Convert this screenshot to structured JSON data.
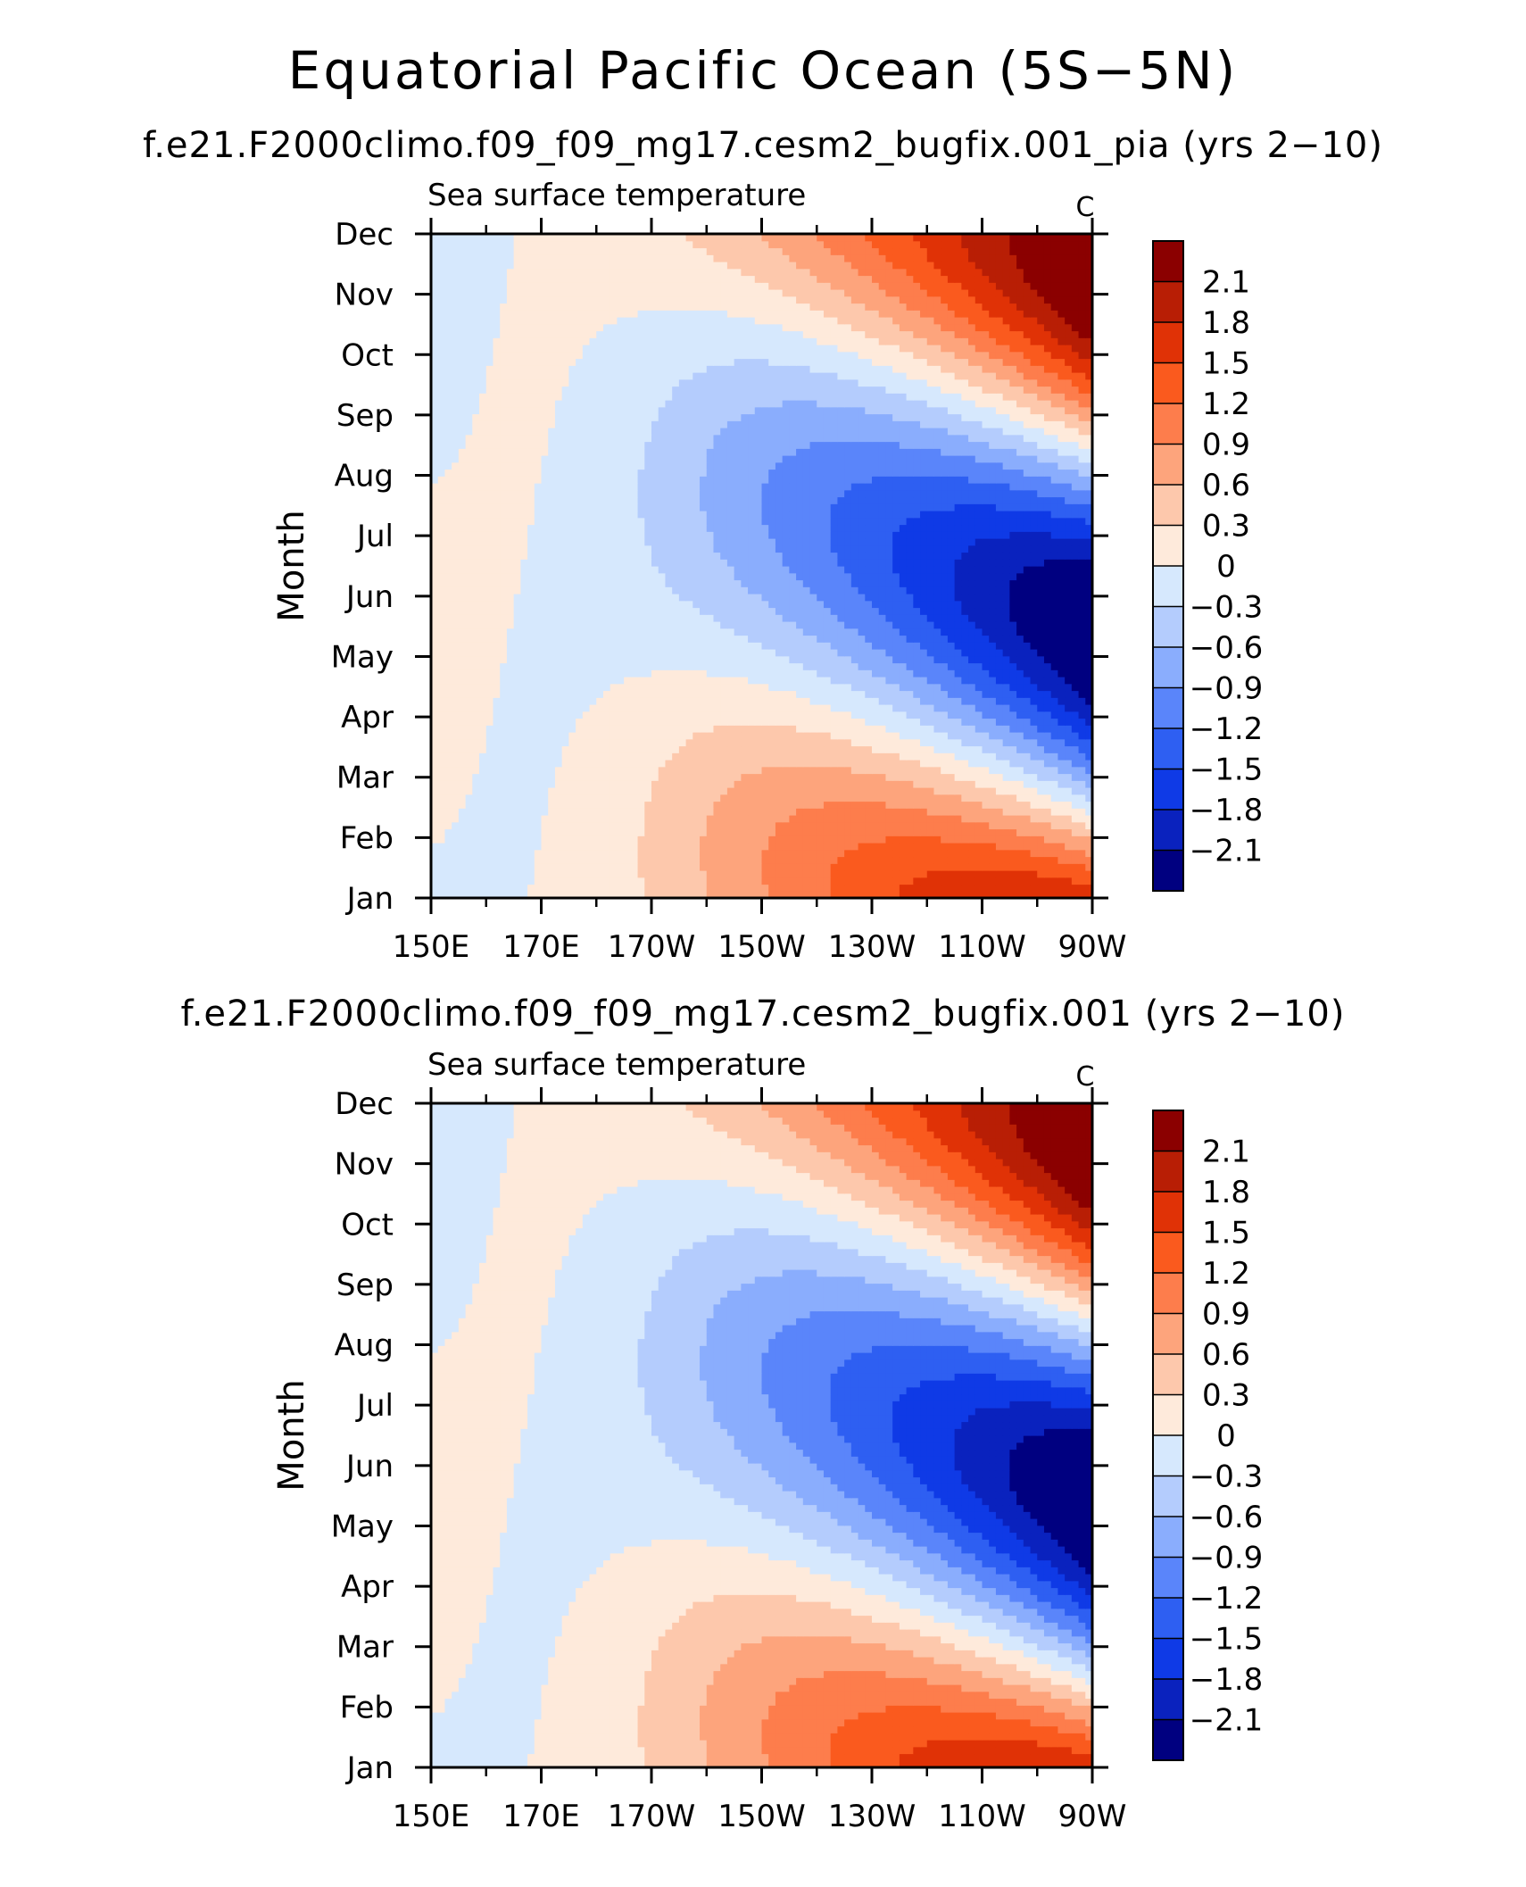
{
  "page": {
    "title": "Equatorial Pacific Ocean (5S−5N)"
  },
  "chart_data": [
    {
      "type": "heatmap",
      "title": "f.e21.F2000climo.f09_f09_mg17.cesm2_bugfix.001_pia (yrs 2−10)",
      "subtitle_left": "Sea surface temperature",
      "units": "C",
      "ylabel": "Month",
      "xlabel": "",
      "x_ticks": [
        "150E",
        "170E",
        "170W",
        "150W",
        "130W",
        "110W",
        "90W"
      ],
      "x_range_deg_east": [
        150,
        270
      ],
      "y_ticks": [
        "Jan",
        "Feb",
        "Mar",
        "Apr",
        "May",
        "Jun",
        "Jul",
        "Aug",
        "Sep",
        "Oct",
        "Nov",
        "Dec"
      ],
      "colorbar": {
        "levels": [
          "2.1",
          "1.8",
          "1.5",
          "1.2",
          "0.9",
          "0.6",
          "0.3",
          "0",
          "−0.3",
          "−0.6",
          "−0.9",
          "−1.2",
          "−1.5",
          "−1.8",
          "−2.1"
        ],
        "colors": [
          "#8b0000",
          "#b81e05",
          "#e03206",
          "#fa5a1e",
          "#fd7d4c",
          "#fda47c",
          "#fdc8ac",
          "#feeadb",
          "#d6e8fd",
          "#b4ccfd",
          "#8aadfd",
          "#5a85fa",
          "#2e5ff2",
          "#0f3ae6",
          "#0a22be",
          "#000080"
        ]
      }
    },
    {
      "type": "heatmap",
      "title": "f.e21.F2000climo.f09_f09_mg17.cesm2_bugfix.001 (yrs 2−10)",
      "subtitle_left": "Sea surface temperature",
      "units": "C",
      "ylabel": "Month",
      "xlabel": "",
      "x_ticks": [
        "150E",
        "170E",
        "170W",
        "150W",
        "130W",
        "110W",
        "90W"
      ],
      "x_range_deg_east": [
        150,
        270
      ],
      "y_ticks": [
        "Jan",
        "Feb",
        "Mar",
        "Apr",
        "May",
        "Jun",
        "Jul",
        "Aug",
        "Sep",
        "Oct",
        "Nov",
        "Dec"
      ],
      "colorbar": {
        "levels": [
          "2.1",
          "1.8",
          "1.5",
          "1.2",
          "0.9",
          "0.6",
          "0.3",
          "0",
          "−0.3",
          "−0.6",
          "−0.9",
          "−1.2",
          "−1.5",
          "−1.8",
          "−2.1"
        ],
        "colors": [
          "#8b0000",
          "#b81e05",
          "#e03206",
          "#fa5a1e",
          "#fd7d4c",
          "#fda47c",
          "#fdc8ac",
          "#feeadb",
          "#d6e8fd",
          "#b4ccfd",
          "#8aadfd",
          "#5a85fa",
          "#2e5ff2",
          "#0f3ae6",
          "#0a22be",
          "#000080"
        ]
      }
    }
  ]
}
